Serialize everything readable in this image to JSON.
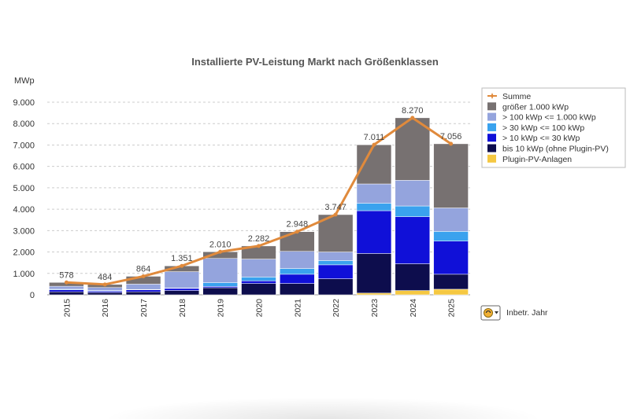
{
  "chart_data": {
    "type": "bar",
    "stacked": true,
    "title": "Installierte PV-Leistung Markt nach Größenklassen",
    "ylabel": "MWp",
    "ylim": [
      0,
      9000
    ],
    "yticks": [
      0,
      1000,
      2000,
      3000,
      4000,
      5000,
      6000,
      7000,
      8000,
      9000
    ],
    "ytick_labels": [
      "0",
      "1.000",
      "2.000",
      "3.000",
      "4.000",
      "5.000",
      "6.000",
      "7.000",
      "8.000",
      "9.000"
    ],
    "grid": true,
    "legend_position": "right",
    "categories": [
      "2015",
      "2016",
      "2017",
      "2018",
      "2019",
      "2020",
      "2021",
      "2022",
      "2023",
      "2024",
      "2025"
    ],
    "series": [
      {
        "name": "Plugin-PV-Anlagen",
        "color": "#F5C842",
        "values": [
          0,
          0,
          0,
          0,
          0,
          0,
          0,
          0,
          80,
          200,
          260
        ]
      },
      {
        "name": "bis 10 kWp (ohne Plugin-PV)",
        "color": "#0D0D4D",
        "values": [
          140,
          110,
          140,
          200,
          330,
          530,
          530,
          750,
          1850,
          1250,
          700
        ]
      },
      {
        "name": "> 10 kWp <= 30 kWp",
        "color": "#1010D8",
        "values": [
          90,
          60,
          90,
          100,
          60,
          120,
          430,
          650,
          2000,
          2200,
          1550
        ]
      },
      {
        "name": "> 30 kWp <= 100 kWp",
        "color": "#3AA2EE",
        "values": [
          30,
          30,
          20,
          20,
          180,
          180,
          270,
          200,
          350,
          500,
          450
        ]
      },
      {
        "name": "> 100 kWp <= 1.000 kWp",
        "color": "#94A4DD",
        "values": [
          140,
          140,
          250,
          760,
          1130,
          840,
          800,
          400,
          900,
          1200,
          1100
        ]
      },
      {
        "name": "größer 1.000 kWp",
        "color": "#777171",
        "values": [
          178,
          144,
          364,
          271,
          310,
          612,
          918,
          1747,
          1831,
          2920,
          2996
        ]
      }
    ],
    "line_series": {
      "name": "Summe",
      "color": "#E08A3C",
      "values": [
        578,
        484,
        864,
        1351,
        2010,
        2282,
        2948,
        3747,
        7011,
        8270,
        7056
      ],
      "labels": [
        "578",
        "484",
        "864",
        "1.351",
        "2.010",
        "2.282",
        "2.948",
        "3.747",
        "7.011",
        "8.270",
        "7.056"
      ]
    }
  },
  "legend": {
    "items": [
      {
        "label": "Summe",
        "color": "#E08A3C",
        "marker": "line-star"
      },
      {
        "label": "größer 1.000 kWp",
        "color": "#777171",
        "marker": "square"
      },
      {
        "label": "> 100 kWp <= 1.000 kWp",
        "color": "#94A4DD",
        "marker": "square"
      },
      {
        "label": "> 30 kWp <= 100 kWp",
        "color": "#3AA2EE",
        "marker": "square"
      },
      {
        "label": "> 10 kWp <= 30 kWp",
        "color": "#1010D8",
        "marker": "square"
      },
      {
        "label": "bis 10 kWp (ohne Plugin-PV)",
        "color": "#0D0D4D",
        "marker": "square"
      },
      {
        "label": "Plugin-PV-Anlagen",
        "color": "#F5C842",
        "marker": "square"
      }
    ]
  },
  "footer": {
    "label": "Inbetr. Jahr",
    "icon": "filter-dropdown-icon"
  }
}
